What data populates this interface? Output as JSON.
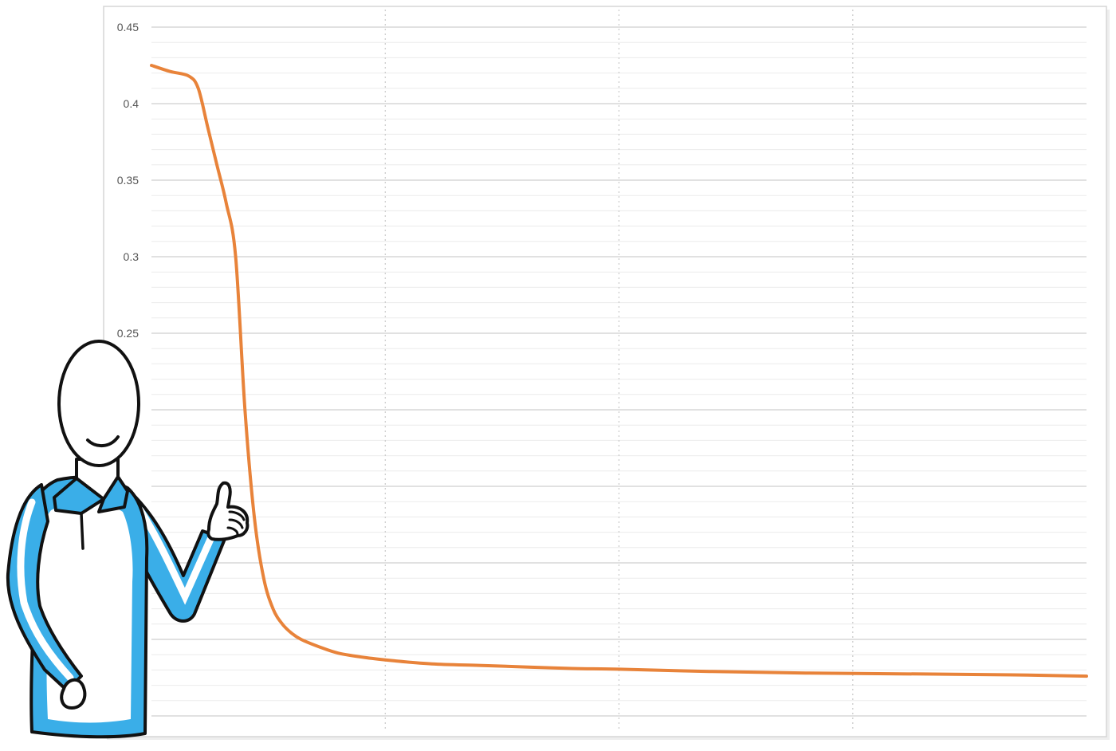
{
  "chart_data": {
    "type": "line",
    "title": "",
    "xlabel": "",
    "ylabel": "",
    "grid": true,
    "ylim": [
      0,
      0.45
    ],
    "xlim": [
      0,
      100
    ],
    "y_ticks": [
      "0.45",
      "0.4",
      "0.35",
      "0.3",
      "0.25"
    ],
    "series": [
      {
        "color": "#E8833A",
        "x": [
          0,
          2,
          4,
          5,
          6,
          7,
          8,
          9,
          10,
          11,
          12,
          13,
          14,
          15,
          16,
          18,
          20,
          23,
          26,
          30,
          35,
          40,
          45,
          50,
          60,
          70,
          80,
          90,
          100
        ],
        "y": [
          0.425,
          0.421,
          0.418,
          0.41,
          0.385,
          0.36,
          0.335,
          0.3,
          0.2,
          0.13,
          0.09,
          0.07,
          0.06,
          0.054,
          0.05,
          0.045,
          0.041,
          0.038,
          0.036,
          0.034,
          0.033,
          0.032,
          0.031,
          0.0305,
          0.029,
          0.028,
          0.0275,
          0.027,
          0.026
        ]
      }
    ]
  },
  "illustration": {
    "figure": "person-giving-thumbs-up",
    "shirt_color": "#3AAEE8"
  }
}
